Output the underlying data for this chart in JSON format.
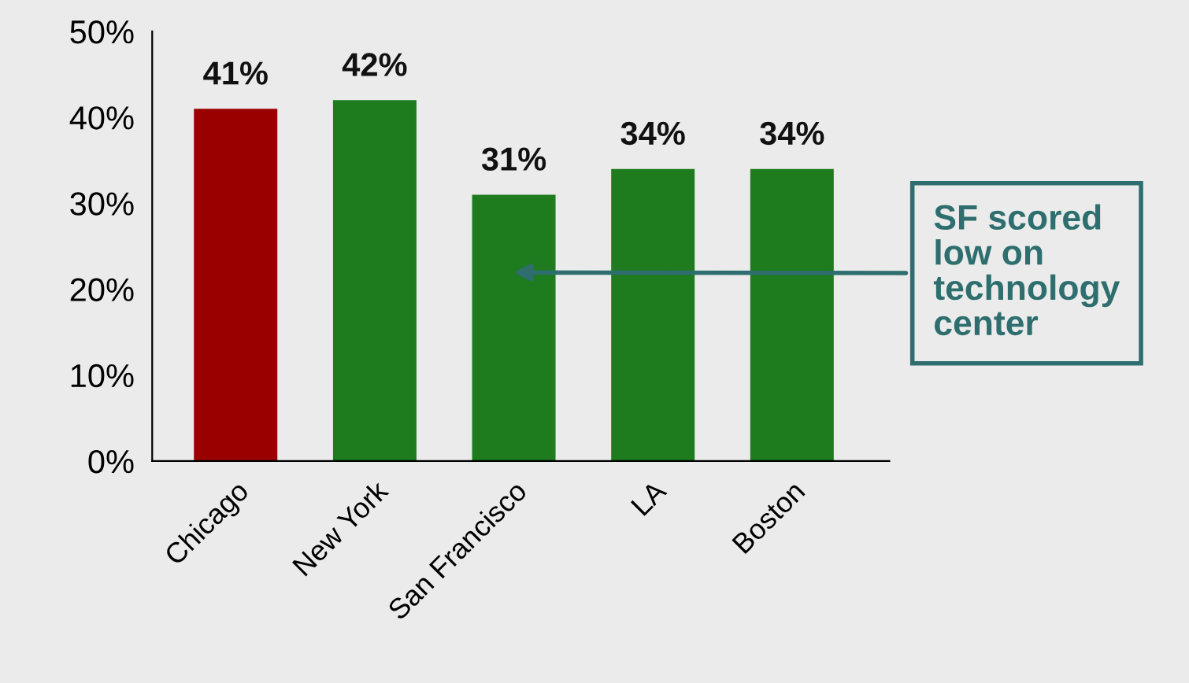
{
  "chart_data": {
    "type": "bar",
    "categories": [
      "Chicago",
      "New York",
      "San Francisco",
      "LA",
      "Boston"
    ],
    "values": [
      41,
      42,
      31,
      34,
      34
    ],
    "colors": [
      "#990000",
      "#1e7b1e",
      "#1e7b1e",
      "#1e7b1e",
      "#1e7b1e"
    ],
    "value_labels": [
      "41%",
      "42%",
      "31%",
      "34%",
      "34%"
    ],
    "ylim": [
      0,
      50
    ],
    "yticks": [
      {
        "value": 0,
        "label": "0%"
      },
      {
        "value": 10,
        "label": "10%"
      },
      {
        "value": 20,
        "label": "20%"
      },
      {
        "value": 30,
        "label": "30%"
      },
      {
        "value": 40,
        "label": "40%"
      },
      {
        "value": 50,
        "label": "50%"
      }
    ],
    "grid": false,
    "legend": false,
    "annotations": [
      "SF scored\nlow on\ntechnology\ncenter"
    ]
  }
}
